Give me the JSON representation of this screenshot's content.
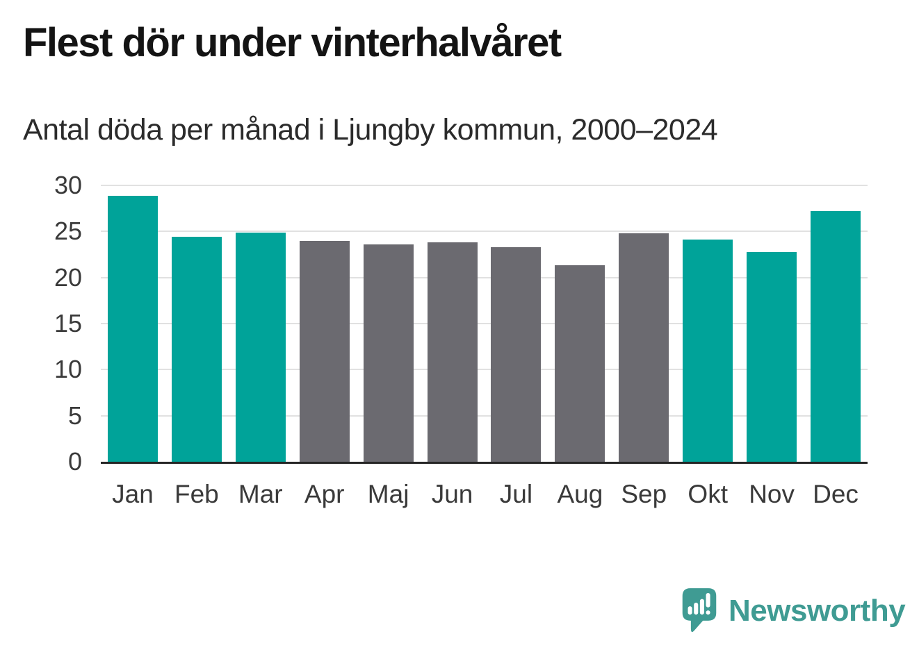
{
  "header": {
    "title": "Flest dör under vinterhalvåret",
    "subtitle": "Antal döda per månad i Ljungby kommun, 2000–2024"
  },
  "footer": {
    "brand": "Newsworthy"
  },
  "colors": {
    "highlight_teal": "#00a399",
    "muted_gray": "#6b6a70",
    "gridline": "#e1e1e1",
    "axis": "#262626",
    "logo_teal": "#3f9b93",
    "title_text": "#141414",
    "tick_text": "#3a3a3a"
  },
  "chart_data": {
    "type": "bar",
    "title": "Flest dör under vinterhalvåret",
    "subtitle": "Antal döda per månad i Ljungby kommun, 2000–2024",
    "categories": [
      "Jan",
      "Feb",
      "Mar",
      "Apr",
      "Maj",
      "Jun",
      "Jul",
      "Aug",
      "Sep",
      "Okt",
      "Nov",
      "Dec"
    ],
    "values": [
      28.9,
      24.4,
      24.9,
      24.0,
      23.6,
      23.8,
      23.3,
      21.3,
      24.8,
      24.1,
      22.8,
      27.2
    ],
    "highlighted": [
      true,
      true,
      true,
      false,
      false,
      false,
      false,
      false,
      false,
      true,
      true,
      true
    ],
    "xlabel": "",
    "ylabel": "",
    "ylim": [
      0,
      30
    ],
    "yticks": [
      0,
      5,
      10,
      15,
      20,
      25,
      30
    ],
    "grid": "horizontal",
    "legend": "none"
  }
}
